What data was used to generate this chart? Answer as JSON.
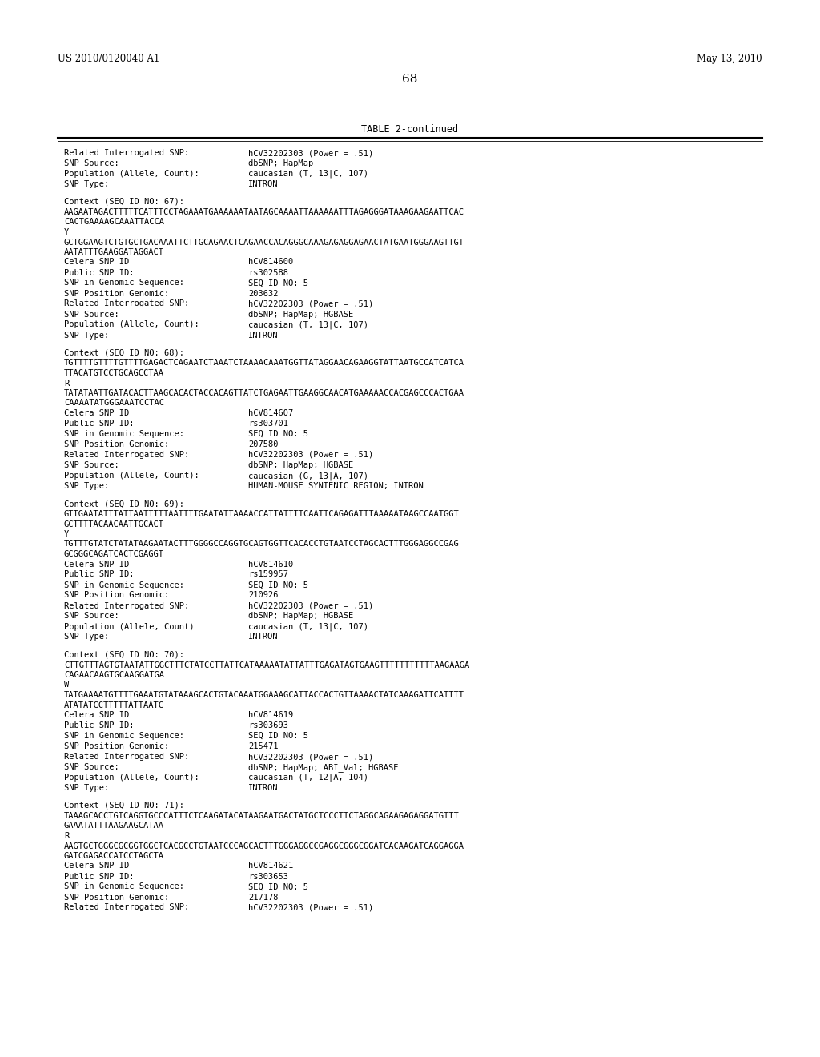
{
  "header_left": "US 2010/0120040 A1",
  "header_right": "May 13, 2010",
  "page_number": "68",
  "table_title": "TABLE 2-continued",
  "background_color": "#ffffff",
  "text_color": "#000000",
  "content": [
    {
      "type": "field",
      "label": "Related Interrogated SNP:",
      "value": "hCV32202303 (Power = .51)"
    },
    {
      "type": "field",
      "label": "SNP Source:",
      "value": "dbSNP; HapMap"
    },
    {
      "type": "field",
      "label": "Population (Allele, Count):",
      "value": "caucasian (T, 13|C, 107)"
    },
    {
      "type": "field",
      "label": "SNP Type:",
      "value": "INTRON"
    },
    {
      "type": "blank"
    },
    {
      "type": "context_header",
      "value": "Context (SEQ ID NO: 67):"
    },
    {
      "type": "mono",
      "value": "AAGAATAGACTTTTTCATTTCCTAGAAATGAAAAAATAATAGCAAAATTAAAAAATTTAGAGGGATAAAGAAGAATTCAC"
    },
    {
      "type": "mono",
      "value": "CACTGAAAAGCAAATTACCA"
    },
    {
      "type": "mono",
      "value": "Y"
    },
    {
      "type": "mono",
      "value": "GCTGGAAGTCTGTGCTGACAAATTCTTGCAGAACTCAGAACCACAGGGCAAAGAGAGGAGAACTATGAATGGGAAGTTGT"
    },
    {
      "type": "mono",
      "value": "AATATTTGAAGGATAGGACT"
    },
    {
      "type": "field",
      "label": "Celera SNP ID",
      "value": "hCV814600"
    },
    {
      "type": "field",
      "label": "Public SNP ID:",
      "value": "rs302588"
    },
    {
      "type": "field",
      "label": "SNP in Genomic Sequence:",
      "value": "SEQ ID NO: 5"
    },
    {
      "type": "field",
      "label": "SNP Position Genomic:",
      "value": "203632"
    },
    {
      "type": "field",
      "label": "Related Interrogated SNP:",
      "value": "hCV32202303 (Power = .51)"
    },
    {
      "type": "field",
      "label": "SNP Source:",
      "value": "dbSNP; HapMap; HGBASE"
    },
    {
      "type": "field",
      "label": "Population (Allele, Count):",
      "value": "caucasian (T, 13|C, 107)"
    },
    {
      "type": "field",
      "label": "SNP Type:",
      "value": "INTRON"
    },
    {
      "type": "blank"
    },
    {
      "type": "context_header",
      "value": "Context (SEQ ID NO: 68):"
    },
    {
      "type": "mono",
      "value": "TGTTTTGTTTTGTTTTGAGACTCAGAATCTAAATCTAAAACAAATGGTTATAGGAACAGAAGGTATTAATGCCATCATCA"
    },
    {
      "type": "mono",
      "value": "TTACATGTCCTGCAGCCTAA"
    },
    {
      "type": "mono",
      "value": "R"
    },
    {
      "type": "mono",
      "value": "TATATAATTGATACACTTAAGCACACTACCACAGTTATCTGAGAATTGAAGGCAACATGAAAAACCACGAGCCCACTGAA"
    },
    {
      "type": "mono",
      "value": "CAAAATATGGGAAATCCTAC"
    },
    {
      "type": "field",
      "label": "Celera SNP ID",
      "value": "hCV814607"
    },
    {
      "type": "field",
      "label": "Public SNP ID:",
      "value": "rs303701"
    },
    {
      "type": "field",
      "label": "SNP in Genomic Sequence:",
      "value": "SEQ ID NO: 5"
    },
    {
      "type": "field",
      "label": "SNP Position Genomic:",
      "value": "207580"
    },
    {
      "type": "field",
      "label": "Related Interrogated SNP:",
      "value": "hCV32202303 (Power = .51)"
    },
    {
      "type": "field",
      "label": "SNP Source:",
      "value": "dbSNP; HapMap; HGBASE"
    },
    {
      "type": "field",
      "label": "Population (Allele, Count):",
      "value": "caucasian (G, 13|A, 107)"
    },
    {
      "type": "field",
      "label": "SNP Type:",
      "value": "HUMAN-MOUSE SYNTENIC REGION; INTRON"
    },
    {
      "type": "blank"
    },
    {
      "type": "context_header",
      "value": "Context (SEQ ID NO: 69):"
    },
    {
      "type": "mono",
      "value": "GTTGAATATTTATTAATTTTTAATTTTGAATATTAAAACCATTATTTTCAATTCAGAGATTTAAAAATAAGCCAATGGT"
    },
    {
      "type": "mono",
      "value": "GCTTTTACAACAATTGCACT"
    },
    {
      "type": "mono",
      "value": "Y"
    },
    {
      "type": "mono",
      "value": "TGTTTGTATCTATATAAGAATACTTTGGGGCCAGGTGCAGTGGTTCACACCTGTAATCCTAGCACTTTGGGAGGCCGAG"
    },
    {
      "type": "mono",
      "value": "GCGGGCAGATCACTCGAGGT"
    },
    {
      "type": "field",
      "label": "Celera SNP ID",
      "value": "hCV814610"
    },
    {
      "type": "field",
      "label": "Public SNP ID:",
      "value": "rs159957"
    },
    {
      "type": "field",
      "label": "SNP in Genomic Sequence:",
      "value": "SEQ ID NO: 5"
    },
    {
      "type": "field",
      "label": "SNP Position Genomic:",
      "value": "210926"
    },
    {
      "type": "field",
      "label": "Related Interrogated SNP:",
      "value": "hCV32202303 (Power = .51)"
    },
    {
      "type": "field",
      "label": "SNP Source:",
      "value": "dbSNP; HapMap; HGBASE"
    },
    {
      "type": "field",
      "label": "Population (Allele, Count)",
      "value": "caucasian (T, 13|C, 107)"
    },
    {
      "type": "field",
      "label": "SNP Type:",
      "value": "INTRON"
    },
    {
      "type": "blank"
    },
    {
      "type": "context_header",
      "value": "Context (SEQ ID NO: 70):"
    },
    {
      "type": "mono",
      "value": "CTTGTTTAGTGTAATATTGGCTTTCTATCCTTATTCATAAAAATATTATTTGAGATAGTGAAGTTTTTTTTTTTAAGAAGA"
    },
    {
      "type": "mono",
      "value": "CAGAACAAGTGCAAGGATGA"
    },
    {
      "type": "mono",
      "value": "W"
    },
    {
      "type": "mono",
      "value": "TATGAAAATGTTTTGAAATGTATAAAGCACTGTACAAATGGAAAGCATTACCACTGTTAAAACTATCAAAGATTCATTTT"
    },
    {
      "type": "mono",
      "value": "ATATATCCTTTTTATTAATC"
    },
    {
      "type": "field",
      "label": "Celera SNP ID",
      "value": "hCV814619"
    },
    {
      "type": "field",
      "label": "Public SNP ID:",
      "value": "rs303693"
    },
    {
      "type": "field",
      "label": "SNP in Genomic Sequence:",
      "value": "SEQ ID NO: 5"
    },
    {
      "type": "field",
      "label": "SNP Position Genomic:",
      "value": "215471"
    },
    {
      "type": "field",
      "label": "Related Interrogated SNP:",
      "value": "hCV32202303 (Power = .51)"
    },
    {
      "type": "field",
      "label": "SNP Source:",
      "value": "dbSNP; HapMap; ABI_Val; HGBASE"
    },
    {
      "type": "field",
      "label": "Population (Allele, Count):",
      "value": "caucasian (T, 12|A, 104)"
    },
    {
      "type": "field",
      "label": "SNP Type:",
      "value": "INTRON"
    },
    {
      "type": "blank"
    },
    {
      "type": "context_header",
      "value": "Context (SEQ ID NO: 71):"
    },
    {
      "type": "mono",
      "value": "TAAAGCACCTGTCAGGTGCCCATTTCTCAAGATACATAAGAATGACTATGCTCCCTTCTAGGCAGAAGAGAGGATGTTT"
    },
    {
      "type": "mono",
      "value": "GAAATATTTAAGAAGCATAA"
    },
    {
      "type": "mono",
      "value": "R"
    },
    {
      "type": "mono",
      "value": "AAGTGCTGGGCGCGGTGGCTCACGCCTGTAATCCCAGCACTTTGGGAGGCCGAGGCGGGCGGATCACAAGATCAGGAGGA"
    },
    {
      "type": "mono",
      "value": "GATCGAGACCATCCTAGCTA"
    },
    {
      "type": "field",
      "label": "Celera SNP ID",
      "value": "hCV814621"
    },
    {
      "type": "field",
      "label": "Public SNP ID:",
      "value": "rs303653"
    },
    {
      "type": "field",
      "label": "SNP in Genomic Sequence:",
      "value": "SEQ ID NO: 5"
    },
    {
      "type": "field",
      "label": "SNP Position Genomic:",
      "value": "217178"
    },
    {
      "type": "field",
      "label": "Related Interrogated SNP:",
      "value": "hCV32202303 (Power = .51)"
    }
  ]
}
